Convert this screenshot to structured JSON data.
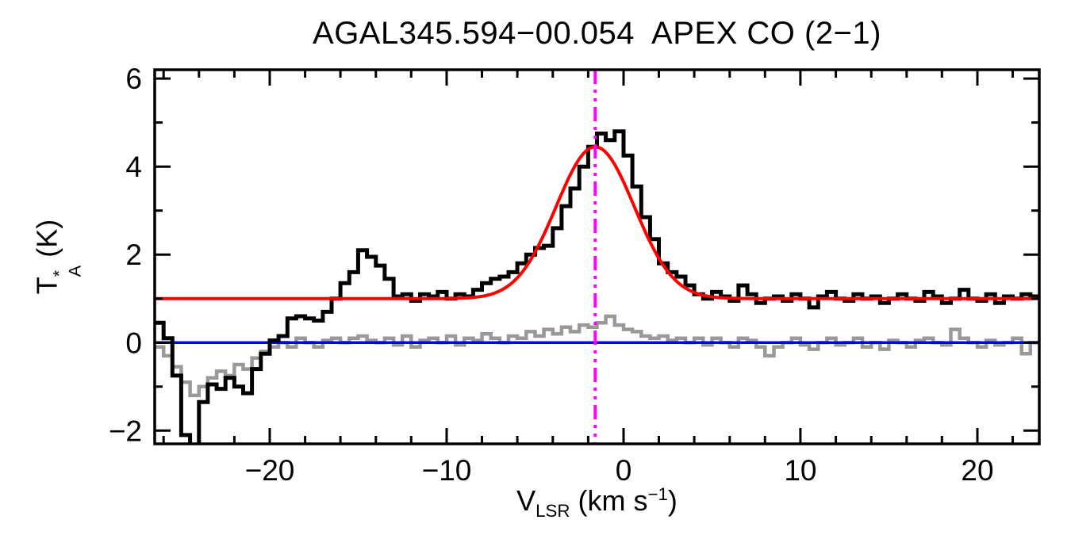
{
  "figure": {
    "background": "#ffffff"
  },
  "chart_data": {
    "type": "line",
    "title": "AGAL345.594−00.054  APEX CO (2−1)",
    "ylabel_parts": {
      "base": "T",
      "sup": "*",
      "sub": "A",
      "unit": " (K)"
    },
    "xlabel_parts": {
      "base": "V",
      "sub": "LSR",
      "mid": " (km s",
      "sup": "−1",
      "end": ")"
    },
    "x_axis": {
      "lim": [
        -26.5,
        23.5
      ],
      "ticks": [
        -20,
        -10,
        0,
        10,
        20
      ],
      "tick_labels": [
        "−20",
        "−10",
        "0",
        "10",
        "20"
      ],
      "minor_step": 2
    },
    "y_axis": {
      "lim": [
        -2.3,
        6.2
      ],
      "ticks": [
        -2,
        0,
        2,
        4,
        6
      ],
      "tick_labels": [
        "−2",
        "0",
        "2",
        "4",
        "6"
      ],
      "minor_step": 1
    },
    "series": [
      {
        "name": "observed-spectrum",
        "color": "#000000",
        "style": "histogram",
        "x_start": -26.25,
        "dx": 0.5,
        "values": [
          0.45,
          0.1,
          -0.75,
          -2.1,
          -2.5,
          -1.35,
          -0.95,
          -1.05,
          -0.8,
          -1.0,
          -1.15,
          -0.6,
          -0.25,
          0.05,
          0.15,
          0.55,
          0.6,
          0.55,
          0.5,
          0.7,
          1.0,
          1.35,
          1.6,
          2.1,
          1.95,
          1.75,
          1.45,
          1.05,
          1.1,
          0.95,
          1.1,
          1.05,
          1.15,
          1.0,
          1.1,
          1.05,
          1.2,
          1.35,
          1.45,
          1.5,
          1.6,
          1.8,
          2.0,
          2.15,
          2.2,
          2.6,
          3.1,
          3.5,
          4.0,
          4.45,
          4.75,
          4.6,
          4.8,
          4.25,
          3.55,
          2.85,
          2.35,
          1.8,
          1.6,
          1.5,
          1.3,
          1.1,
          1.0,
          1.15,
          1.05,
          0.95,
          1.3,
          1.1,
          0.9,
          1.0,
          1.05,
          0.95,
          1.1,
          1.0,
          0.8,
          1.05,
          1.15,
          1.0,
          0.95,
          1.1,
          1.0,
          1.05,
          0.9,
          1.0,
          1.1,
          1.0,
          0.95,
          1.15,
          1.05,
          0.9,
          1.0,
          1.2,
          1.0,
          0.95,
          1.1,
          0.9,
          1.05,
          1.0,
          1.1,
          1.05
        ]
      },
      {
        "name": "residual-spectrum",
        "color": "#999999",
        "style": "histogram",
        "x_start": -26.25,
        "dx": 0.5,
        "values": [
          -0.1,
          -0.3,
          -0.55,
          -0.9,
          -1.2,
          -1.0,
          -0.8,
          -0.65,
          -0.75,
          -0.5,
          -0.6,
          -0.35,
          -0.2,
          -0.1,
          0.0,
          -0.1,
          0.1,
          0.0,
          -0.1,
          0.05,
          0.1,
          0.0,
          0.1,
          0.15,
          0.05,
          0.0,
          0.1,
          -0.05,
          0.15,
          -0.1,
          0.05,
          0.1,
          0.0,
          0.15,
          -0.05,
          0.1,
          0.05,
          0.2,
          0.1,
          0.0,
          0.15,
          0.1,
          0.25,
          0.15,
          0.3,
          0.2,
          0.35,
          0.25,
          0.4,
          0.35,
          0.45,
          0.6,
          0.4,
          0.3,
          0.25,
          0.15,
          0.1,
          0.15,
          0.05,
          0.1,
          0.0,
          0.1,
          -0.05,
          0.1,
          0.0,
          -0.1,
          0.1,
          0.05,
          -0.1,
          -0.3,
          -0.1,
          0.0,
          0.1,
          -0.05,
          -0.15,
          0.0,
          0.1,
          -0.05,
          0.0,
          0.1,
          -0.1,
          0.0,
          -0.15,
          0.05,
          0.0,
          -0.1,
          0.05,
          0.1,
          0.0,
          -0.05,
          0.3,
          0.1,
          0.0,
          -0.1,
          0.05,
          -0.05,
          0.0,
          0.1,
          -0.25,
          0.0
        ]
      }
    ],
    "fit": {
      "name": "gaussian-fit",
      "color": "#ff0000",
      "baseline": 1.0,
      "amplitude": 3.45,
      "center": -1.6,
      "fwhm": 5.2
    },
    "baseline_line": {
      "name": "zero-level-line",
      "color": "#0000ff",
      "y": 0
    },
    "marker_line": {
      "name": "vlsr-marker-line",
      "color": "#ff00ff",
      "x": -1.6,
      "style": "dash-dot"
    }
  }
}
